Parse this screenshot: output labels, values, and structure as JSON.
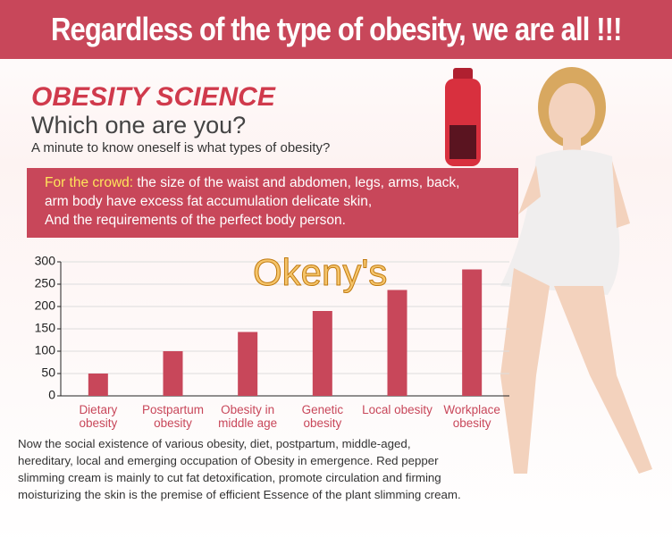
{
  "header": {
    "title": "Regardless of the type of obesity, we are all !!!"
  },
  "intro": {
    "brand": "OBESITY SCIENCE",
    "heading": "Which one are you?",
    "subheading": "A minute to know oneself is what types of obesity?"
  },
  "crowd": {
    "label": "For the crowd:",
    "lines": [
      "the size of the waist and abdomen, legs, arms, back,",
      "arm body have excess fat accumulation delicate skin,",
      "And the requirements of the perfect body person."
    ]
  },
  "watermark": "Okeny's",
  "chart_data": {
    "type": "bar",
    "categories": [
      "Dietary obesity",
      "Postpartum obesity",
      "Obesity in middle age",
      "Genetic obesity",
      "Local obesity",
      "Workplace obesity"
    ],
    "values": [
      50,
      100,
      143,
      190,
      237,
      283
    ],
    "color": "#c8475a",
    "ylim": [
      0,
      300
    ],
    "yticks": [
      0,
      50,
      100,
      150,
      200,
      250,
      300
    ],
    "grid": true
  },
  "footer": {
    "lines": [
      "Now the social existence of various obesity, diet, postpartum, middle-aged,",
      "hereditary, local and emerging occupation of Obesity in emergence. Red pepper",
      "slimming cream is mainly to cut fat detoxification, promote circulation and firming",
      "moisturizing the skin is the premise of efficient Essence of the plant slimming cream."
    ]
  }
}
